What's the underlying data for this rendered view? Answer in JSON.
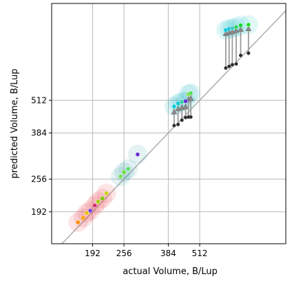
{
  "chart_data": {
    "type": "scatter",
    "title": "",
    "xlabel": "actual Volume, B/Lup",
    "ylabel": "predicted Volume, B/Lup",
    "x_scale": "log2",
    "y_scale": "log2",
    "xlim": [
      132,
      1126
    ],
    "ylim": [
      145,
      1200
    ],
    "x_ticks": [
      192,
      256,
      384,
      512
    ],
    "y_ticks": [
      192,
      256,
      384,
      512
    ],
    "grid": true,
    "identity_line": true,
    "clusters": [
      {
        "color": "#e6343a",
        "points": [
          [
            168,
            175
          ],
          [
            176,
            182
          ],
          [
            182,
            190
          ],
          [
            188,
            194
          ],
          [
            196,
            203
          ],
          [
            202,
            210
          ],
          [
            210,
            216
          ],
          [
            218,
            226
          ]
        ],
        "dot_colors": [
          "#ff8c00",
          "#ffa500",
          "#e8c000",
          "#7040e0",
          "#d03070",
          "#a0d000",
          "#7bc800",
          "#c8d400"
        ]
      },
      {
        "color": "#2d99a6",
        "points": [
          [
            248,
            262
          ],
          [
            256,
            272
          ],
          [
            266,
            280
          ],
          [
            290,
            318
          ]
        ],
        "dot_colors": [
          "#6ee050",
          "#66dd33",
          "#55e066",
          "#6a30d8"
        ]
      },
      {
        "color": "#1ab3c2",
        "points": [
          [
            405,
            485
          ],
          [
            420,
            498
          ],
          [
            435,
            505
          ],
          [
            450,
            508
          ],
          [
            462,
            540
          ],
          [
            472,
            545
          ]
        ],
        "dot_colors": [
          "#00d0d8",
          "#00c8d0",
          "#30d0a0",
          "#6030d8",
          "#80e040",
          "#50e050"
        ],
        "predicted_high": [
          [
            405,
            462
          ],
          [
            420,
            475
          ],
          [
            435,
            480
          ],
          [
            450,
            484
          ],
          [
            462,
            515
          ],
          [
            472,
            520
          ]
        ],
        "predicted_low": [
          [
            405,
            410
          ],
          [
            420,
            414
          ],
          [
            435,
            430
          ],
          [
            450,
            440
          ],
          [
            462,
            442
          ],
          [
            472,
            442
          ]
        ]
      },
      {
        "color": "#22c4cc",
        "points": [
          [
            650,
            950
          ],
          [
            670,
            960
          ],
          [
            690,
            965
          ],
          [
            715,
            975
          ],
          [
            745,
            990
          ],
          [
            800,
            995
          ]
        ],
        "dot_colors": [
          "#00c8d8",
          "#20c0e0",
          "#40c8c0",
          "#30d060",
          "#10d830",
          "#20e020"
        ],
        "predicted_high": [
          [
            650,
            920
          ],
          [
            670,
            930
          ],
          [
            690,
            935
          ],
          [
            715,
            945
          ],
          [
            745,
            955
          ],
          [
            800,
            960
          ]
        ],
        "predicted_low": [
          [
            650,
            680
          ],
          [
            670,
            690
          ],
          [
            690,
            700
          ],
          [
            715,
            705
          ],
          [
            745,
            760
          ],
          [
            800,
            775
          ]
        ]
      }
    ]
  }
}
